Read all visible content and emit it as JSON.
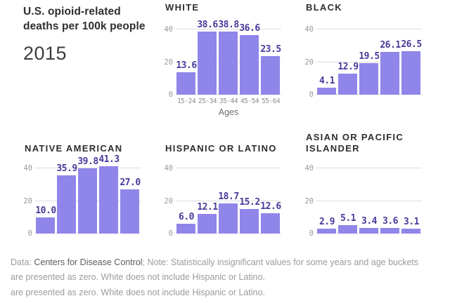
{
  "header": {
    "title_line1": "U.S. opioid-related",
    "title_line2": "deaths per 100k people",
    "year": "2015"
  },
  "chart_data": {
    "type": "bar",
    "title": "U.S. opioid-related deaths per 100k people",
    "subtitle": "2015",
    "categories": [
      "15-24",
      "25-34",
      "35-44",
      "45-54",
      "55-64"
    ],
    "xlabel": "Ages",
    "ylabel": "",
    "ylim": [
      0,
      43
    ],
    "yticks": [
      0,
      20,
      40
    ],
    "grid": true,
    "series": [
      {
        "name": "WHITE",
        "values": [
          13.6,
          38.6,
          38.8,
          36.6,
          23.5
        ]
      },
      {
        "name": "BLACK",
        "values": [
          4.1,
          12.9,
          19.5,
          26.1,
          26.5
        ]
      },
      {
        "name": "NATIVE AMERICAN",
        "values": [
          10.0,
          35.9,
          39.8,
          41.3,
          27.0
        ]
      },
      {
        "name": "HISPANIC OR LATINO",
        "values": [
          6.0,
          12.1,
          18.7,
          15.2,
          12.6
        ]
      },
      {
        "name": "ASIAN OR PACIFIC ISLANDER",
        "values": [
          2.9,
          5.1,
          3.4,
          3.6,
          3.1
        ]
      }
    ]
  },
  "footer": {
    "data_label": "Data: ",
    "source": "Centers for Disease Control",
    "note": "; Note: Statistically insignificant values for some years and age buckets",
    "note_line2": "are presented as zero. White does not include Hispanic or Latino.",
    "duplicate_line": "are presented as zero. White does not include Hispanic or Latino."
  },
  "colors": {
    "bar": "#9085e9",
    "bar_label": "#473a99",
    "grid": "#dcdcdc",
    "axis_tick": "#9a9a9a",
    "chart_title": "#2e2e2e",
    "header_text": "#2e2e2e",
    "footer_text": "#9b9b9b",
    "footer_source": "#5c5c5c"
  }
}
